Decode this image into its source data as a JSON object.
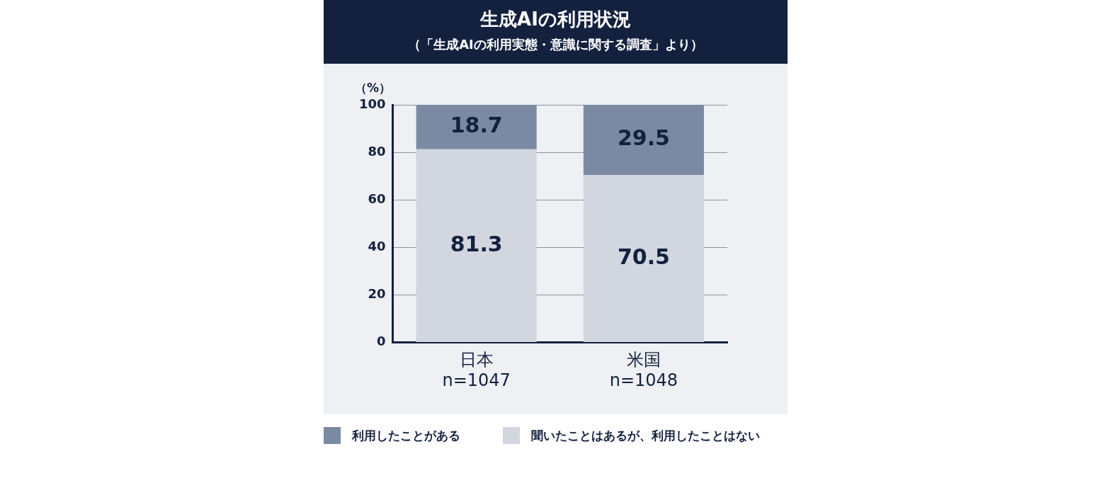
{
  "chart_data": {
    "type": "bar",
    "title": "生成AIの利用状況",
    "subtitle": "（「生成AIの利用実態・意識に関する調査」より）",
    "ylabel": "（%）",
    "categories": [
      "日本\nn=1047",
      "米国\nn=1048"
    ],
    "series": [
      {
        "name": "聞いたことはあるが、利用したことはない",
        "color": "#d1d6df",
        "values": [
          81.3,
          70.5
        ]
      },
      {
        "name": "利用したことがある",
        "color": "#7b8aa3",
        "values": [
          18.7,
          29.5
        ]
      }
    ],
    "stacked": true,
    "ylim": [
      0,
      100
    ],
    "yticks": [
      0,
      20,
      40,
      60,
      80,
      100
    ],
    "grid": "y",
    "legend": "bottom",
    "data_labels": true
  }
}
